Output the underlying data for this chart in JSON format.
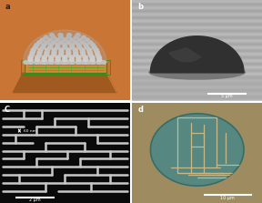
{
  "fig_width": 2.88,
  "fig_height": 2.23,
  "dpi": 100,
  "background_color": "#ffffff",
  "panel_a_bg": "#c87535",
  "panel_b_bg_top": "#b8b8b8",
  "panel_b_bg_bot": "#8a8a8a",
  "panel_c_bg": "#0a0a0a",
  "panel_d_bg": "#9a8a60",
  "scale_labels": [
    "5 μm",
    "2 μm",
    "10 μm"
  ],
  "sem_annotation": "60 nm",
  "border_color": "#aaaaaa",
  "nano_color_top": "#d0d0d0",
  "nano_color_bot": "#a0a0a0",
  "platform_dark": "#a05a20",
  "platform_mid": "#c87535",
  "platform_light": "#d4893a",
  "green_line": "#5aaa2a",
  "green_border": "#3a8a1a",
  "lens_teal": "#4a8a88",
  "lens_edge": "#2a6a68"
}
